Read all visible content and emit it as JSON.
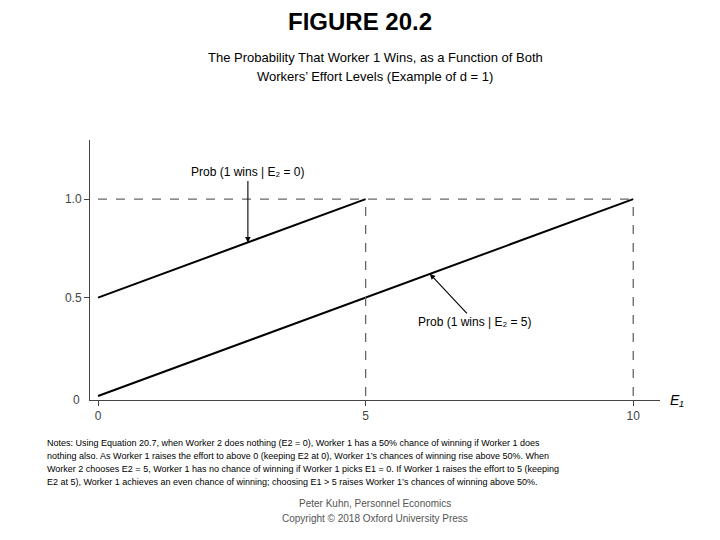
{
  "chart_data": {
    "type": "line",
    "title": "FIGURE 20.2",
    "subtitle": [
      "The Probability That Worker 1 Wins, as a Function of Both",
      "Workers’ Effort Levels (Example of d = 1)"
    ],
    "xlabel": "E₁",
    "xlim": [
      -0.15,
      10.5
    ],
    "ylim": [
      -0.02,
      1.3
    ],
    "xticks": [
      0,
      5,
      10
    ],
    "yticks": [
      0.5,
      {
        "value": 1.0,
        "label": "1.0"
      }
    ],
    "grid": false,
    "series": [
      {
        "name": "Prob (1 wins | E₂ = 0)",
        "color": "#000000",
        "line_style": "solid",
        "x": [
          0,
          5
        ],
        "values": [
          0.5,
          1.0
        ]
      },
      {
        "name": "Prob (1 wins | E₂ = 5)",
        "color": "#000000",
        "line_style": "solid",
        "x": [
          0,
          10
        ],
        "values": [
          0.0,
          1.0
        ]
      },
      {
        "color": "#666666",
        "line_style": "dashed",
        "x": [
          0,
          10
        ],
        "values": [
          1.0,
          1.0
        ]
      },
      {
        "color": "#666666",
        "line_style": "dashed",
        "x": [
          5,
          5
        ],
        "values": [
          0,
          1.0
        ]
      },
      {
        "color": "#666666",
        "line_style": "dashed",
        "x": [
          10,
          10
        ],
        "values": [
          0,
          1.0
        ]
      }
    ],
    "annotations": [
      "0"
    ],
    "notes": [
      "Notes: Using Equation 20.7, when Worker 2 does nothing (E2 = 0), Worker 1 has a 50% chance of winning if Worker 1 does",
      "nothing also. As Worker 1 raises the effort to above 0 (keeping E2 at 0), Worker 1’s chances of winning rise above 50%. When",
      "Worker 2 chooses E2 = 5, Worker 1 has no chance of winning if Worker 1 picks E1 = 0. If Worker 1 raises the effort to 5 (keeping",
      "E2 at 5), Worker 1 achieves an even chance of winning; choosing E1 > 5 raises Worker 1’s chances of winning above 50%."
    ],
    "footer": [
      "Peter Kuhn, Personnel Economics",
      "Copyright © 2018 Oxford University Press"
    ]
  }
}
